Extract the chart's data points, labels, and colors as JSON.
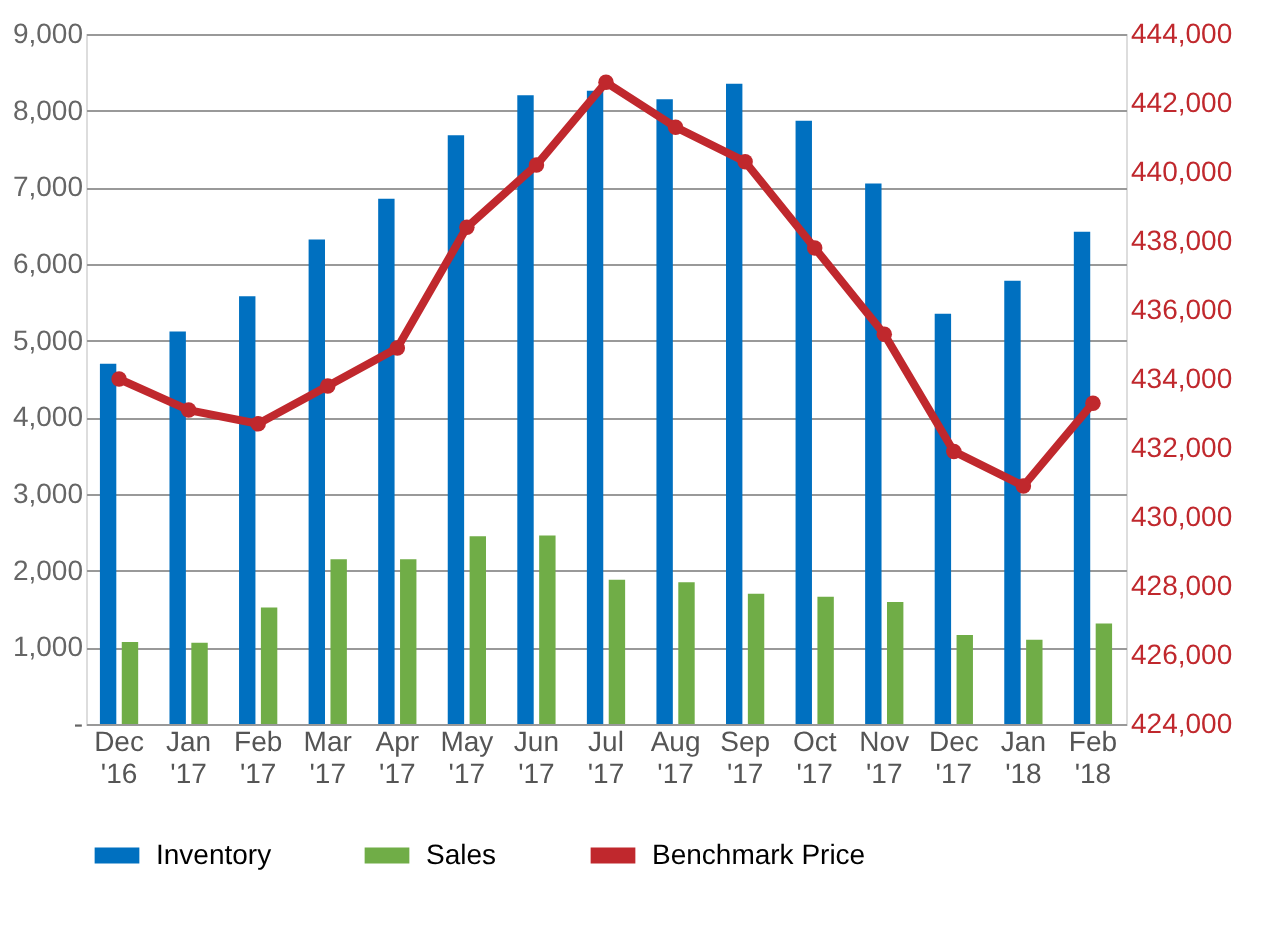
{
  "chart_data": {
    "type": "bar",
    "categories": [
      "Dec '16",
      "Jan '17",
      "Feb '17",
      "Mar '17",
      "Apr '17",
      "May '17",
      "Jun '17",
      "Jul '17",
      "Aug '17",
      "Sep '17",
      "Oct '17",
      "Nov '17",
      "Dec '17",
      "Jan '18",
      "Feb '18"
    ],
    "series": [
      {
        "name": "Inventory",
        "color": "#0070c0",
        "values": [
          4700,
          5120,
          5580,
          6320,
          6850,
          7680,
          8200,
          8260,
          8150,
          8350,
          7870,
          7050,
          5350,
          5780,
          6420
        ]
      },
      {
        "name": "Sales",
        "color": "#70ad47",
        "values": [
          1070,
          1060,
          1520,
          2150,
          2150,
          2450,
          2460,
          1880,
          1850,
          1700,
          1660,
          1590,
          1160,
          1100,
          1310
        ]
      },
      {
        "name": "Benchmark Price",
        "type": "line",
        "axis": "y2",
        "color": "#c0282d",
        "marker": "circle",
        "values": [
          434000,
          433100,
          432700,
          433800,
          434900,
          438400,
          440200,
          442600,
          441300,
          440300,
          437800,
          435300,
          431900,
          430900,
          433300
        ]
      }
    ],
    "ylim": [
      0,
      9000
    ],
    "yticks": [
      {
        "value": 0,
        "label": "-"
      },
      {
        "value": 1000,
        "label": "1,000"
      },
      {
        "value": 2000,
        "label": "2,000"
      },
      {
        "value": 3000,
        "label": "3,000"
      },
      {
        "value": 4000,
        "label": "4,000"
      },
      {
        "value": 5000,
        "label": "5,000"
      },
      {
        "value": 6000,
        "label": "6,000"
      },
      {
        "value": 7000,
        "label": "7,000"
      },
      {
        "value": 8000,
        "label": "8,000"
      },
      {
        "value": 9000,
        "label": "9,000"
      }
    ],
    "y2lim": [
      424000,
      444000
    ],
    "y2ticks": [
      {
        "value": 424000,
        "label": "424,000"
      },
      {
        "value": 426000,
        "label": "426,000"
      },
      {
        "value": 428000,
        "label": "428,000"
      },
      {
        "value": 430000,
        "label": "430,000"
      },
      {
        "value": 432000,
        "label": "432,000"
      },
      {
        "value": 434000,
        "label": "434,000"
      },
      {
        "value": 436000,
        "label": "436,000"
      },
      {
        "value": 438000,
        "label": "438,000"
      },
      {
        "value": 440000,
        "label": "440,000"
      },
      {
        "value": 442000,
        "label": "442,000"
      },
      {
        "value": 444000,
        "label": "444,000"
      }
    ],
    "grid": "y",
    "legend": "bottom"
  }
}
